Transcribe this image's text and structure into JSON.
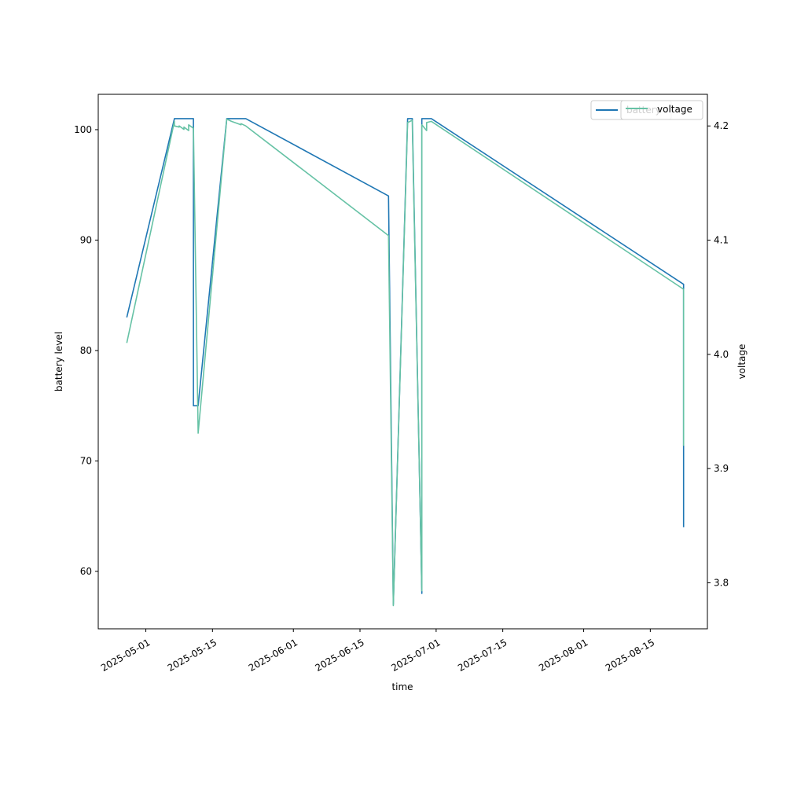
{
  "chart_data": {
    "type": "line",
    "xlabel": "time",
    "ylabel": "battery level",
    "y2label": "voltage",
    "xlim": [
      "2025-04-21",
      "2025-08-27"
    ],
    "ylim": [
      54.8,
      103.2
    ],
    "y2lim": [
      3.7597,
      4.2277
    ],
    "x_ticks": [
      "2025-05-01",
      "2025-05-15",
      "2025-06-01",
      "2025-06-15",
      "2025-07-01",
      "2025-07-15",
      "2025-08-01",
      "2025-08-15"
    ],
    "y_ticks": [
      60,
      70,
      80,
      90,
      100
    ],
    "y2_ticks": [
      "3.8",
      "3.9",
      "4.0",
      "4.1",
      "4.2"
    ],
    "legend_position": "top-right",
    "colors": {
      "battery": "#1f77b4",
      "voltage": "#66c2a5"
    },
    "series": [
      {
        "name": "battery",
        "axis": "left",
        "x": [
          "2025-04-27",
          "2025-05-07",
          "2025-05-11",
          "2025-05-11",
          "2025-05-12",
          "2025-05-18",
          "2025-05-22",
          "2025-06-21",
          "2025-06-21",
          "2025-06-22",
          "2025-06-25",
          "2025-06-26",
          "2025-06-28",
          "2025-06-28",
          "2025-06-29",
          "2025-06-30",
          "2025-08-22",
          "2025-08-22"
        ],
        "y": [
          83,
          101,
          101,
          75,
          75,
          101,
          101,
          94,
          94,
          57,
          101,
          101,
          58,
          101,
          101,
          101,
          86,
          64
        ]
      },
      {
        "name": "voltage",
        "axis": "right",
        "x": [
          "2025-04-27",
          "2025-05-07",
          "2025-05-07",
          "2025-05-08",
          "2025-05-08",
          "2025-05-09",
          "2025-05-09",
          "2025-05-10",
          "2025-05-10",
          "2025-05-11",
          "2025-05-12",
          "2025-05-18",
          "2025-05-19",
          "2025-05-21",
          "2025-05-21",
          "2025-05-22",
          "2025-06-21",
          "2025-06-22",
          "2025-06-25",
          "2025-06-26",
          "2025-06-26",
          "2025-06-28",
          "2025-06-28",
          "2025-06-29",
          "2025-06-29",
          "2025-06-30",
          "2025-08-22",
          "2025-08-22"
        ],
        "y": [
          4.01,
          4.204,
          4.2,
          4.199,
          4.2,
          4.197,
          4.199,
          4.196,
          4.201,
          4.198,
          3.931,
          4.206,
          4.204,
          4.201,
          4.202,
          4.2,
          4.104,
          3.78,
          4.203,
          4.205,
          4.2,
          3.793,
          4.201,
          4.196,
          4.203,
          4.204,
          4.057,
          3.92
        ]
      }
    ]
  }
}
